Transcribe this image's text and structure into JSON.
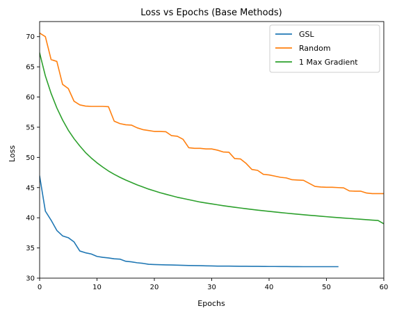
{
  "chart_data": {
    "type": "line",
    "title": "Loss vs Epochs (Base Methods)",
    "xlabel": "Epochs",
    "ylabel": "Loss",
    "xlim": [
      0,
      60
    ],
    "ylim": [
      30,
      72.5
    ],
    "xticks": [
      0,
      10,
      20,
      30,
      40,
      50,
      60
    ],
    "yticks": [
      30,
      35,
      40,
      45,
      50,
      55,
      60,
      65,
      70
    ],
    "grid": false,
    "legend_position": "top-right",
    "series": [
      {
        "name": "GSL",
        "color": "#1f77b4",
        "x": [
          0,
          1,
          2,
          3,
          4,
          5,
          6,
          7,
          8,
          9,
          10,
          11,
          12,
          13,
          14,
          15,
          16,
          17,
          18,
          19,
          20,
          21,
          22,
          23,
          24,
          25,
          26,
          27,
          28,
          29,
          30,
          31,
          32,
          33,
          34,
          35,
          36,
          37,
          38,
          39,
          40,
          41,
          42,
          43,
          44,
          45,
          46,
          47,
          48,
          49,
          50,
          51,
          52
        ],
        "y": [
          46.9,
          41.1,
          39.6,
          37.9,
          37.0,
          36.7,
          36.0,
          34.5,
          34.2,
          34.0,
          33.6,
          33.45,
          33.35,
          33.2,
          33.15,
          32.8,
          32.7,
          32.55,
          32.45,
          32.3,
          32.25,
          32.22,
          32.2,
          32.18,
          32.15,
          32.12,
          32.1,
          32.08,
          32.06,
          32.04,
          32.02,
          32.0,
          32.0,
          31.99,
          31.98,
          31.97,
          31.96,
          31.95,
          31.95,
          31.94,
          31.93,
          31.93,
          31.92,
          31.92,
          31.91,
          31.91,
          31.9,
          31.9,
          31.9,
          31.9,
          31.9,
          31.9,
          31.9
        ]
      },
      {
        "name": "Random",
        "color": "#ff7f0e",
        "x": [
          0,
          1,
          2,
          3,
          4,
          5,
          6,
          7,
          8,
          9,
          10,
          11,
          12,
          13,
          14,
          15,
          16,
          17,
          18,
          19,
          20,
          21,
          22,
          23,
          24,
          25,
          26,
          27,
          28,
          29,
          30,
          31,
          32,
          33,
          34,
          35,
          36,
          37,
          38,
          39,
          40,
          41,
          42,
          43,
          44,
          45,
          46,
          47,
          48,
          49,
          50,
          51,
          52,
          53,
          54,
          55,
          56,
          57,
          58,
          59,
          60
        ],
        "y": [
          70.6,
          70.0,
          66.2,
          65.9,
          62.1,
          61.4,
          59.3,
          58.7,
          58.5,
          58.45,
          58.45,
          58.45,
          58.4,
          56.0,
          55.6,
          55.4,
          55.35,
          54.9,
          54.6,
          54.45,
          54.3,
          54.3,
          54.25,
          53.6,
          53.5,
          53.0,
          51.6,
          51.5,
          51.5,
          51.4,
          51.4,
          51.2,
          50.9,
          50.85,
          49.8,
          49.75,
          49.0,
          48.0,
          47.85,
          47.2,
          47.1,
          46.9,
          46.7,
          46.6,
          46.3,
          46.25,
          46.2,
          45.7,
          45.2,
          45.1,
          45.05,
          45.05,
          45.0,
          44.95,
          44.45,
          44.4,
          44.4,
          44.1,
          44.0,
          44.0,
          44.0
        ]
      },
      {
        "name": "1 Max Gradient",
        "color": "#2ca02c",
        "x": [
          0,
          1,
          2,
          3,
          4,
          5,
          6,
          7,
          8,
          9,
          10,
          11,
          12,
          13,
          14,
          15,
          16,
          17,
          18,
          19,
          20,
          21,
          22,
          23,
          24,
          25,
          26,
          27,
          28,
          29,
          30,
          31,
          32,
          33,
          34,
          35,
          36,
          37,
          38,
          39,
          40,
          41,
          42,
          43,
          44,
          45,
          46,
          47,
          48,
          49,
          50,
          51,
          52,
          53,
          54,
          55,
          56,
          57,
          58,
          59,
          60
        ],
        "y": [
          67.3,
          63.5,
          60.6,
          58.2,
          56.2,
          54.5,
          53.1,
          51.9,
          50.8,
          49.9,
          49.1,
          48.4,
          47.75,
          47.2,
          46.7,
          46.25,
          45.85,
          45.45,
          45.1,
          44.75,
          44.45,
          44.15,
          43.9,
          43.65,
          43.4,
          43.2,
          43.0,
          42.8,
          42.6,
          42.45,
          42.3,
          42.15,
          42.0,
          41.87,
          41.74,
          41.62,
          41.5,
          41.38,
          41.27,
          41.16,
          41.06,
          40.96,
          40.86,
          40.77,
          40.68,
          40.59,
          40.5,
          40.42,
          40.34,
          40.26,
          40.18,
          40.1,
          40.03,
          39.96,
          39.89,
          39.82,
          39.75,
          39.68,
          39.61,
          39.55,
          39.0
        ]
      }
    ]
  }
}
